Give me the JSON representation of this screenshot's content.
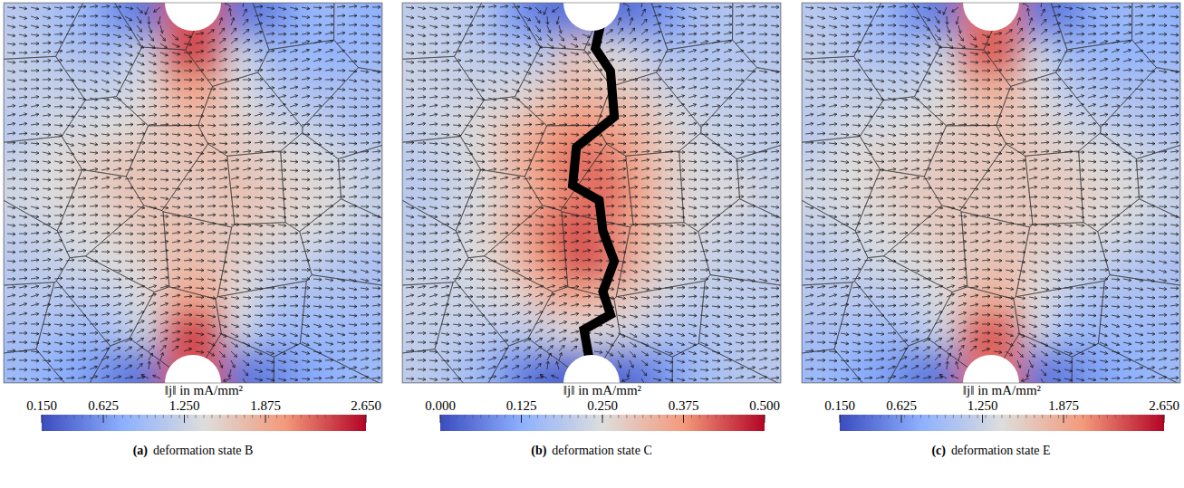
{
  "chart_data": [
    {
      "type": "heatmap",
      "label": "(a)",
      "title": "deformation state B",
      "colorbar_label": "‖j‖ in mA/mm²",
      "color_range": [
        0.15,
        2.65
      ],
      "color_ticks": [
        {
          "value": 0.15,
          "label": "0.150"
        },
        0.625,
        {
          "value": 1.25,
          "label": "1.250"
        },
        1.875,
        {
          "value": 2.65,
          "label": "2.650"
        }
      ],
      "tick_labels": false,
      "cells": [
        [
          1.1,
          1.0,
          0.9,
          0.6,
          0.4,
          2.3,
          2.3,
          0.4,
          0.5,
          0.8,
          0.9,
          0.8
        ],
        [
          1.2,
          1.1,
          1.0,
          1.0,
          1.3,
          2.4,
          2.4,
          1.3,
          0.9,
          0.9,
          0.8,
          0.9
        ],
        [
          1.2,
          1.2,
          1.2,
          1.2,
          1.4,
          1.9,
          1.9,
          1.4,
          1.1,
          1.0,
          1.0,
          1.0
        ],
        [
          1.1,
          1.3,
          1.3,
          1.4,
          1.5,
          1.7,
          1.7,
          1.5,
          1.3,
          1.2,
          1.1,
          1.0
        ],
        [
          1.2,
          1.4,
          1.5,
          1.6,
          1.6,
          1.6,
          1.7,
          1.6,
          1.5,
          1.4,
          1.3,
          1.2
        ],
        [
          1.3,
          1.4,
          1.5,
          1.6,
          1.7,
          1.6,
          1.6,
          1.7,
          1.6,
          1.5,
          1.4,
          1.2
        ],
        [
          1.2,
          1.3,
          1.4,
          1.5,
          1.6,
          1.7,
          1.6,
          1.6,
          1.5,
          1.4,
          1.3,
          1.2
        ],
        [
          1.1,
          1.2,
          1.3,
          1.4,
          1.5,
          1.7,
          1.7,
          1.5,
          1.3,
          1.2,
          1.1,
          1.0
        ],
        [
          1.1,
          1.1,
          1.1,
          1.2,
          1.4,
          1.9,
          1.9,
          1.4,
          1.1,
          1.0,
          1.0,
          1.0
        ],
        [
          1.0,
          1.0,
          0.9,
          1.0,
          1.3,
          2.4,
          2.4,
          1.3,
          0.9,
          0.9,
          0.9,
          0.9
        ],
        [
          0.9,
          0.8,
          0.7,
          0.5,
          0.4,
          2.3,
          2.3,
          0.4,
          0.5,
          0.7,
          0.8,
          0.9
        ]
      ]
    },
    {
      "type": "heatmap",
      "label": "(b)",
      "title": "deformation state C",
      "colorbar_label": "‖j‖ in mA/mm²",
      "color_range": [
        0.0,
        0.5
      ],
      "color_ticks": [
        {
          "value": 0.0,
          "label": "0.000"
        },
        0.125,
        {
          "value": 0.25,
          "label": "0.250"
        },
        0.375,
        {
          "value": 0.5,
          "label": "0.500"
        }
      ],
      "tick_labels": false,
      "cells": [
        [
          0.2,
          0.2,
          0.18,
          0.1,
          0.05,
          0.05,
          0.05,
          0.05,
          0.1,
          0.17,
          0.18,
          0.18
        ],
        [
          0.22,
          0.21,
          0.2,
          0.18,
          0.2,
          0.3,
          0.25,
          0.22,
          0.17,
          0.18,
          0.18,
          0.19
        ],
        [
          0.22,
          0.22,
          0.22,
          0.24,
          0.28,
          0.32,
          0.3,
          0.28,
          0.22,
          0.2,
          0.2,
          0.2
        ],
        [
          0.21,
          0.23,
          0.26,
          0.3,
          0.34,
          0.38,
          0.36,
          0.32,
          0.26,
          0.22,
          0.21,
          0.2
        ],
        [
          0.2,
          0.22,
          0.26,
          0.32,
          0.38,
          0.42,
          0.4,
          0.34,
          0.28,
          0.24,
          0.22,
          0.21
        ],
        [
          0.19,
          0.21,
          0.25,
          0.3,
          0.36,
          0.4,
          0.42,
          0.36,
          0.28,
          0.24,
          0.26,
          0.22
        ],
        [
          0.2,
          0.22,
          0.26,
          0.32,
          0.4,
          0.44,
          0.4,
          0.34,
          0.28,
          0.24,
          0.22,
          0.21
        ],
        [
          0.21,
          0.22,
          0.25,
          0.3,
          0.38,
          0.44,
          0.42,
          0.32,
          0.26,
          0.22,
          0.21,
          0.2
        ],
        [
          0.22,
          0.22,
          0.23,
          0.26,
          0.32,
          0.36,
          0.32,
          0.28,
          0.22,
          0.2,
          0.2,
          0.2
        ],
        [
          0.21,
          0.21,
          0.2,
          0.19,
          0.22,
          0.26,
          0.24,
          0.22,
          0.18,
          0.18,
          0.19,
          0.2
        ],
        [
          0.2,
          0.18,
          0.15,
          0.08,
          0.04,
          0.03,
          0.03,
          0.05,
          0.1,
          0.16,
          0.18,
          0.19
        ]
      ]
    },
    {
      "type": "heatmap",
      "label": "(c)",
      "title": "deformation state E",
      "colorbar_label": "‖j‖ in mA/mm²",
      "color_range": [
        0.15,
        2.65
      ],
      "color_ticks": [
        {
          "value": 0.15,
          "label": "0.150"
        },
        0.625,
        {
          "value": 1.25,
          "label": "1.250"
        },
        1.875,
        {
          "value": 2.65,
          "label": "2.650"
        }
      ],
      "tick_labels": false,
      "cells": [
        [
          1.1,
          1.0,
          0.9,
          0.6,
          0.4,
          2.2,
          2.2,
          0.4,
          0.5,
          0.8,
          0.9,
          0.8
        ],
        [
          1.2,
          1.1,
          1.0,
          1.0,
          1.3,
          2.3,
          2.3,
          1.3,
          0.9,
          0.9,
          0.8,
          0.9
        ],
        [
          1.2,
          1.2,
          1.2,
          1.2,
          1.4,
          1.8,
          1.8,
          1.4,
          1.1,
          1.0,
          1.0,
          1.0
        ],
        [
          1.1,
          1.3,
          1.3,
          1.4,
          1.5,
          1.6,
          1.7,
          1.5,
          1.3,
          1.2,
          1.1,
          1.0
        ],
        [
          1.2,
          1.4,
          1.5,
          1.5,
          1.6,
          1.6,
          1.6,
          1.6,
          1.5,
          1.4,
          1.3,
          1.2
        ],
        [
          1.3,
          1.4,
          1.5,
          1.6,
          1.6,
          1.6,
          1.6,
          1.6,
          1.6,
          1.5,
          1.4,
          1.2
        ],
        [
          1.2,
          1.3,
          1.4,
          1.5,
          1.6,
          1.6,
          1.6,
          1.6,
          1.5,
          1.4,
          1.3,
          1.2
        ],
        [
          1.1,
          1.2,
          1.3,
          1.4,
          1.5,
          1.6,
          1.7,
          1.5,
          1.3,
          1.2,
          1.1,
          1.0
        ],
        [
          1.1,
          1.1,
          1.1,
          1.2,
          1.4,
          1.8,
          1.8,
          1.4,
          1.1,
          1.0,
          1.0,
          1.0
        ],
        [
          1.0,
          1.0,
          0.9,
          1.0,
          1.3,
          2.3,
          2.3,
          1.3,
          0.9,
          0.9,
          0.9,
          0.9
        ],
        [
          0.9,
          0.8,
          0.7,
          0.5,
          0.4,
          2.2,
          2.2,
          0.4,
          0.5,
          0.7,
          0.8,
          0.9
        ]
      ]
    }
  ]
}
